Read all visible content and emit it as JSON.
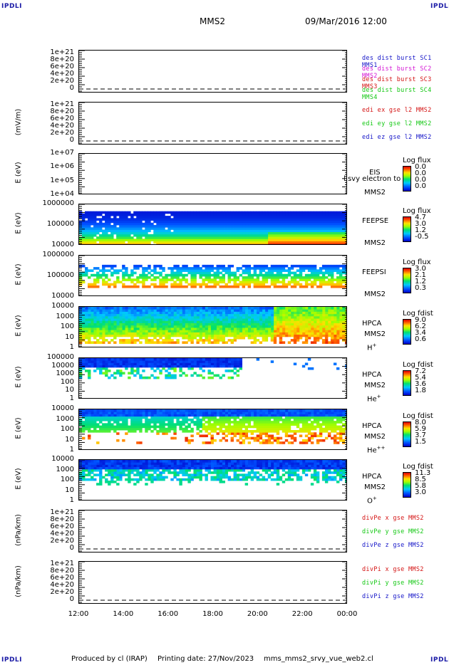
{
  "header": {
    "corner_label": "IPDLI",
    "spacecraft": "MMS2",
    "datetime": "09/Mar/2016 12:00"
  },
  "footer": {
    "produced": "Produced by cl (IRAP)",
    "printing": "Printing date: 27/Nov/2023",
    "script": "mms_mms2_srvy_vue_web2.cl"
  },
  "x_axis": {
    "ticks": [
      "12:00",
      "14:00",
      "16:00",
      "18:00",
      "20:00",
      "22:00",
      "00:00"
    ]
  },
  "panels": {
    "p1": {
      "ylabel": "",
      "ticks": [
        "1e+21",
        "8e+20",
        "6e+20",
        "4e+20",
        "2e+20",
        "0"
      ],
      "legend": [
        {
          "text": "des dist burst SC1 MMS1",
          "color": "#1414c8"
        },
        {
          "text": "des dist burst SC2 MMS2",
          "color": "#d414d4"
        },
        {
          "text": "des dist burst SC3 MMS3",
          "color": "#d41414"
        },
        {
          "text": "des dist burst SC4 MMS4",
          "color": "#14c814"
        }
      ]
    },
    "p2": {
      "ylabel": "(mV/m)",
      "ticks": [
        "1e+21",
        "8e+20",
        "6e+20",
        "4e+20",
        "2e+20",
        "0"
      ],
      "legend": [
        {
          "text": "edi ex gse l2 MMS2",
          "color": "#d41414"
        },
        {
          "text": "edi ey gse l2 MMS2",
          "color": "#14c814"
        },
        {
          "text": "edi ez gse l2 MMS2",
          "color": "#1414c8"
        }
      ]
    },
    "p3": {
      "ylabel": "E (eV)",
      "ticks": [
        "1e+07",
        "1e+06",
        "1e+05",
        "1e+04"
      ],
      "instrument": "EIS",
      "overlay": "l svy electron to",
      "sc": "MMS2",
      "cbar_title": "Log flux",
      "cbar_vals": [
        "0.0",
        "0.0",
        "0.0",
        "0.0"
      ]
    },
    "p4": {
      "ylabel": "E (eV)",
      "ticks": [
        "1000000",
        "100000",
        "10000"
      ],
      "instrument": "FEEPSE",
      "sc": "MMS2",
      "cbar_title": "Log flux",
      "cbar_vals": [
        "4.7",
        "3.0",
        "1.2",
        "-0.5"
      ]
    },
    "p5": {
      "ylabel": "E (eV)",
      "ticks": [
        "1000000",
        "100000",
        "10000"
      ],
      "instrument": "FEEPSI",
      "sc": "MMS2",
      "cbar_title": "Log flux",
      "cbar_vals": [
        "3.0",
        "2.1",
        "1.2",
        "0.3"
      ]
    },
    "p6": {
      "ylabel": "E (eV)",
      "ticks": [
        "10000",
        "1000",
        "100",
        "10",
        "1"
      ],
      "instrument": "HPCA",
      "sc": "MMS2",
      "species": "H",
      "charge": "+",
      "cbar_title": "Log fdist",
      "cbar_vals": [
        "9.0",
        "6.2",
        "3.4",
        "0.6"
      ]
    },
    "p7": {
      "ylabel": "E (eV)",
      "ticks": [
        "100000",
        "10000",
        "1000",
        "100",
        "10",
        "1"
      ],
      "instrument": "HPCA",
      "sc": "MMS2",
      "species": "He",
      "charge": "+",
      "cbar_title": "Log fdist",
      "cbar_vals": [
        "7.2",
        "5.4",
        "3.6",
        "1.8"
      ]
    },
    "p8": {
      "ylabel": "E (eV)",
      "ticks": [
        "10000",
        "1000",
        "100",
        "10",
        "1"
      ],
      "instrument": "HPCA",
      "sc": "MMS2",
      "species": "He",
      "charge": "++",
      "cbar_title": "Log fdist",
      "cbar_vals": [
        "8.0",
        "5.9",
        "3.7",
        "1.5"
      ]
    },
    "p9": {
      "ylabel": "E (eV)",
      "ticks": [
        "10000",
        "1000",
        "100",
        "10",
        "1"
      ],
      "instrument": "HPCA",
      "sc": "MMS2",
      "species": "O",
      "charge": "+",
      "cbar_title": "Log fdist",
      "cbar_vals": [
        "11.3",
        "8.5",
        "5.8",
        "3.0"
      ]
    },
    "p10": {
      "ylabel": "(nPa/km)",
      "ticks": [
        "1e+21",
        "8e+20",
        "6e+20",
        "4e+20",
        "2e+20",
        "0"
      ],
      "legend": [
        {
          "text": "divPe x gse MMS2",
          "color": "#d41414"
        },
        {
          "text": "divPe y gse MMS2",
          "color": "#14c814"
        },
        {
          "text": "divPe z gse MMS2",
          "color": "#1414c8"
        }
      ]
    },
    "p11": {
      "ylabel": "(nPa/km)",
      "ticks": [
        "1e+21",
        "8e+20",
        "6e+20",
        "4e+20",
        "2e+20",
        "0"
      ],
      "legend": [
        {
          "text": "divPi x gse MMS2",
          "color": "#d41414"
        },
        {
          "text": "divPi y gse MMS2",
          "color": "#14c814"
        },
        {
          "text": "divPi z gse MMS2",
          "color": "#1414c8"
        }
      ]
    }
  },
  "chart_data": {
    "type": "heatmap",
    "x_range": [
      "12:00",
      "00:00"
    ],
    "colormap": "rainbow"
  }
}
